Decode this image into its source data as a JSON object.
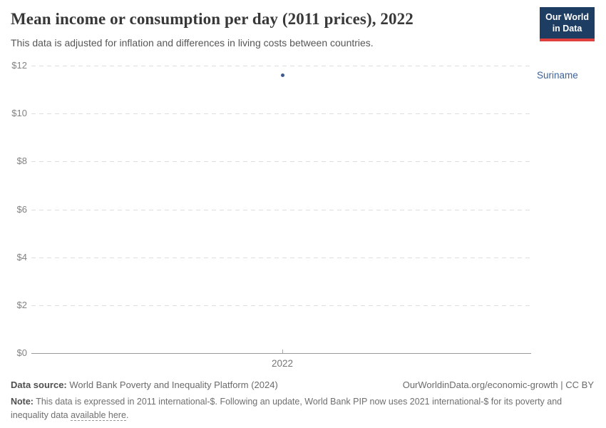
{
  "header": {
    "title": "Mean income or consumption per day (2011 prices), 2022",
    "subtitle": "This data is adjusted for inflation and differences in living costs between countries.",
    "logo": {
      "line1": "Our World",
      "line2": "in Data"
    }
  },
  "chart_data": {
    "type": "scatter",
    "title": "Mean income or consumption per day (2011 prices), 2022",
    "x": [
      2022
    ],
    "xticks": [
      "2022"
    ],
    "series": [
      {
        "name": "Suriname",
        "values": [
          11.6
        ]
      }
    ],
    "xlabel": "",
    "ylabel": "",
    "ylim": [
      0,
      12
    ],
    "yticks": [
      0,
      2,
      4,
      6,
      8,
      10,
      12
    ],
    "ytick_prefix": "$",
    "grid": "horizontal-dashed",
    "legend_position": "entity-label-right"
  },
  "colors": {
    "point": "#3d5a8f",
    "entity_label": "#3d6398",
    "logo_bg": "#1d3d63",
    "logo_stripe": "#e0403d"
  },
  "footer": {
    "source_label": "Data source:",
    "source_text": " World Bank Poverty and Inequality Platform (2024)",
    "attribution": "OurWorldinData.org/economic-growth | CC BY",
    "note_label": "Note:",
    "note_before_link": " This data is expressed in 2011 international-$. Following an update, World Bank PIP now uses 2021 international-$ for its poverty and inequality data ",
    "note_link": "available here",
    "note_after_link": "."
  }
}
